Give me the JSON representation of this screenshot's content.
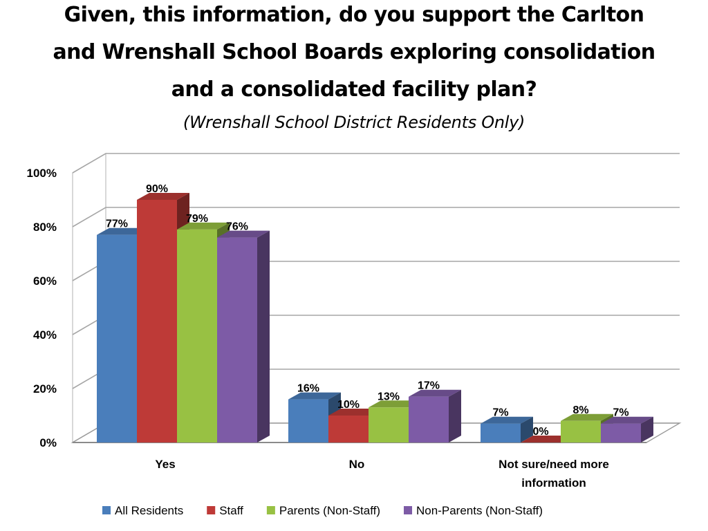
{
  "title_lines": [
    "Given, this information, do you support the Carlton",
    "and Wrenshall School Boards exploring consolidation",
    "and a consolidated facility plan?"
  ],
  "subtitle": "(Wrenshall School District Residents Only)",
  "chart_data": {
    "type": "bar",
    "style": "3d-clustered-column",
    "categories": [
      "Yes",
      "No",
      "Not sure/need more information"
    ],
    "category_label_lines": [
      [
        "Yes"
      ],
      [
        "No"
      ],
      [
        "Not sure/need more",
        "information"
      ]
    ],
    "series": [
      {
        "name": "All Residents",
        "values": [
          77,
          16,
          7
        ],
        "labels": [
          "77%",
          "16%",
          "7%"
        ],
        "color": "#4a7ebb"
      },
      {
        "name": "Staff",
        "values": [
          90,
          10,
          0
        ],
        "labels": [
          "90%",
          "10%",
          "0%"
        ],
        "color": "#be3a37"
      },
      {
        "name": "Parents (Non-Staff)",
        "values": [
          79,
          13,
          8
        ],
        "labels": [
          "79%",
          "13%",
          "8%"
        ],
        "color": "#98c143"
      },
      {
        "name": "Non-Parents (Non-Staff)",
        "values": [
          76,
          17,
          7
        ],
        "labels": [
          "76%",
          "17%",
          "7%"
        ],
        "color": "#7d5ba6"
      }
    ],
    "ylim": [
      0,
      100
    ],
    "yticks": [
      "0%",
      "20%",
      "40%",
      "60%",
      "80%",
      "100%"
    ],
    "grid": true,
    "legend": "bottom"
  }
}
